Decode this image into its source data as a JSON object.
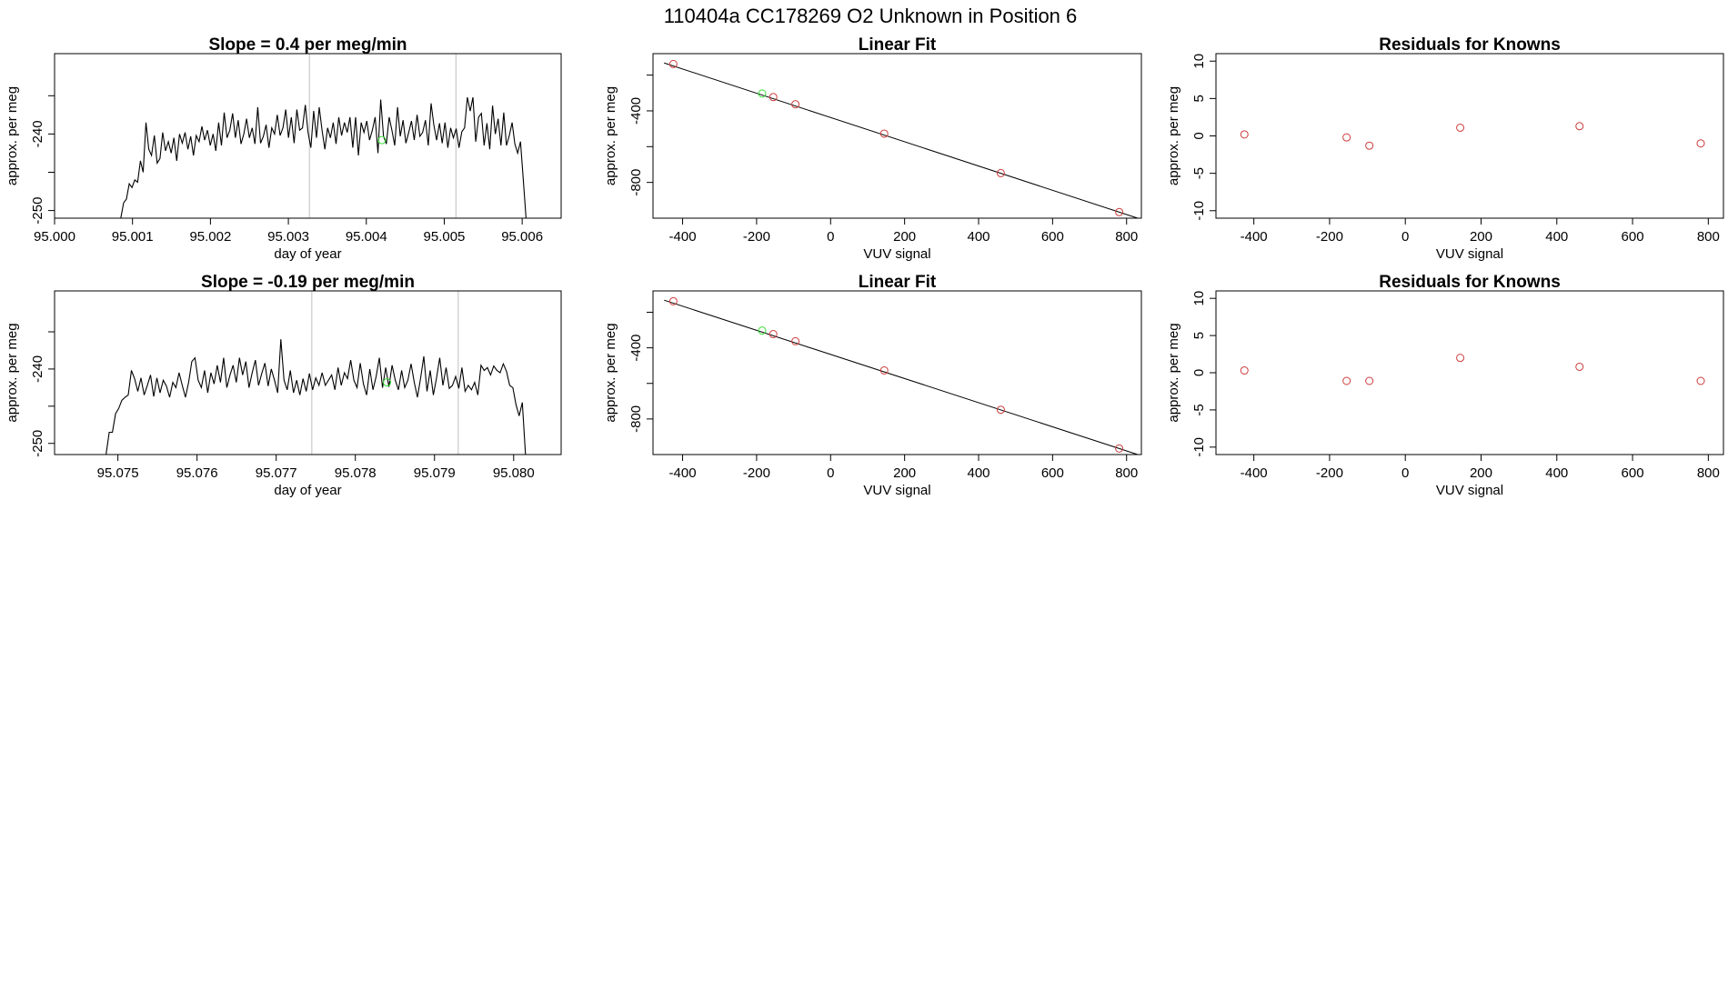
{
  "page_title": "110404a      CC178269   O2 Unknown in Position  6",
  "chart_data": [
    {
      "type": "line",
      "title": "Slope =  0.4  per meg/min",
      "xlabel": "day of year",
      "ylabel": "approx. per meg",
      "xlim": [
        95.0,
        95.0065
      ],
      "ylim": [
        -251,
        -229.5
      ],
      "xticks": [
        "95.000",
        "95.001",
        "95.002",
        "95.003",
        "95.004",
        "95.005",
        "95.006"
      ],
      "xtick_values": [
        95.0,
        95.001,
        95.002,
        95.003,
        95.004,
        95.005,
        95.006
      ],
      "yticks": [
        "-250",
        "-240"
      ],
      "ytick_values": [
        -250,
        -245,
        -240,
        -235
      ],
      "vlines": [
        95.00327,
        95.00515
      ],
      "x_start": 95.00085,
      "x_end": 95.00605,
      "series_y": [
        -251,
        -249,
        -248.5,
        -246.5,
        -247,
        -246,
        -246.3,
        -243.5,
        -245,
        -238.5,
        -242,
        -242.8,
        -240.2,
        -243.8,
        -243.2,
        -239.8,
        -242.2,
        -241,
        -242.5,
        -240.5,
        -243.5,
        -240,
        -241.2,
        -239.8,
        -242,
        -240.3,
        -242.8,
        -240.2,
        -241,
        -239,
        -240.8,
        -239.5,
        -241.5,
        -240,
        -242.2,
        -238.5,
        -241.5,
        -237.2,
        -240.5,
        -239.5,
        -237.3,
        -240.5,
        -238.2,
        -241.3,
        -240,
        -238,
        -240.5,
        -239.2,
        -241.3,
        -236.5,
        -241.2,
        -240.3,
        -238.8,
        -241.8,
        -239.2,
        -240,
        -237.5,
        -240.2,
        -239.2,
        -236.8,
        -240.5,
        -237.8,
        -241.2,
        -236.8,
        -239.5,
        -239.2,
        -236.2,
        -239.8,
        -241.8,
        -237,
        -240.5,
        -236.5,
        -239.5,
        -242,
        -239.2,
        -240.5,
        -238.5,
        -241.3,
        -237.8,
        -240.2,
        -238.5,
        -239.8,
        -237.8,
        -241.8,
        -237.8,
        -242.8,
        -238.5,
        -239.8,
        -238.3,
        -240.8,
        -239.5,
        -237.8,
        -242.5,
        -235.5,
        -240.3,
        -241.3,
        -237.8,
        -239.5,
        -241.5,
        -236.5,
        -240.3,
        -238.2,
        -241.2,
        -239.8,
        -238.3,
        -240.8,
        -237.5,
        -240.3,
        -239.8,
        -238.2,
        -241.5,
        -236,
        -238.8,
        -240.8,
        -238.6,
        -241.2,
        -238.5,
        -241.8,
        -239.2,
        -240.5,
        -239.3,
        -241.8,
        -239.7,
        -239.2,
        -235.2,
        -237,
        -235.2,
        -241,
        -237.8,
        -237.3,
        -241.5,
        -238.6,
        -242,
        -236.3,
        -240,
        -238,
        -241.5,
        -237.2,
        -241.5,
        -240.2,
        -238.5,
        -241.3,
        -242.5,
        -241,
        -246,
        -251
      ],
      "highlight_points": [
        {
          "x": 95.0042,
          "y": -240.8
        }
      ]
    },
    {
      "type": "scatter",
      "title": "Linear Fit",
      "xlabel": "VUV signal",
      "ylabel": "approx. per meg",
      "xlim": [
        -480,
        840
      ],
      "ylim": [
        -1000,
        -80
      ],
      "xticks": [
        "-400",
        "-200",
        "0",
        "200",
        "400",
        "600",
        "800"
      ],
      "xtick_values": [
        -400,
        -200,
        0,
        200,
        400,
        600,
        800
      ],
      "yticks": [
        "-800",
        "-400"
      ],
      "ytick_values": [
        -800,
        -600,
        -400,
        -200
      ],
      "fit_line": {
        "x": [
          -450,
          830
        ],
        "y": [
          -132,
          -1000
        ]
      },
      "points": [
        {
          "x": -425,
          "y": -138
        },
        {
          "x": -155,
          "y": -323
        },
        {
          "x": -95,
          "y": -363
        },
        {
          "x": 145,
          "y": -527
        },
        {
          "x": 460,
          "y": -748
        },
        {
          "x": 780,
          "y": -966
        }
      ],
      "highlight_points": [
        {
          "x": -185,
          "y": -303
        }
      ]
    },
    {
      "type": "scatter",
      "title": "Residuals for Knowns",
      "xlabel": "VUV signal",
      "ylabel": "approx. per meg",
      "xlim": [
        -500,
        840
      ],
      "ylim": [
        -11,
        11
      ],
      "xticks": [
        "-400",
        "-200",
        "0",
        "200",
        "400",
        "600",
        "800"
      ],
      "xtick_values": [
        -400,
        -200,
        0,
        200,
        400,
        600,
        800
      ],
      "yticks": [
        "-10",
        "-5",
        "0",
        "5",
        "10"
      ],
      "ytick_values": [
        -10,
        -5,
        0,
        5,
        10
      ],
      "points": [
        {
          "x": -425,
          "y": 0.2
        },
        {
          "x": -155,
          "y": -0.2
        },
        {
          "x": -95,
          "y": -1.3
        },
        {
          "x": 145,
          "y": 1.1
        },
        {
          "x": 460,
          "y": 1.3
        },
        {
          "x": 780,
          "y": -1.0
        }
      ]
    },
    {
      "type": "line",
      "title": "Slope =  -0.19  per meg/min",
      "xlabel": "day of year",
      "ylabel": "approx. per meg",
      "xlim": [
        95.0742,
        95.0806
      ],
      "ylim": [
        -251.5,
        -229.5
      ],
      "xticks": [
        "95.075",
        "95.076",
        "95.077",
        "95.078",
        "95.079",
        "95.080"
      ],
      "xtick_values": [
        95.075,
        95.076,
        95.077,
        95.078,
        95.079,
        95.08
      ],
      "yticks": [
        "-250",
        "-240"
      ],
      "ytick_values": [
        -250,
        -245,
        -240,
        -235
      ],
      "vlines": [
        95.07745,
        95.0793
      ],
      "x_start": 95.07485,
      "x_end": 95.08015,
      "series_y": [
        -251.5,
        -248.5,
        -248.5,
        -246,
        -245.3,
        -244.2,
        -243.8,
        -243.5,
        -240.2,
        -241.3,
        -243,
        -241.2,
        -243.5,
        -242.2,
        -240.8,
        -243.7,
        -241.2,
        -243.2,
        -241.5,
        -242.3,
        -243.8,
        -241.8,
        -242.5,
        -240.5,
        -242.2,
        -243.8,
        -241.8,
        -239,
        -238.5,
        -241.5,
        -242.5,
        -240.2,
        -243.2,
        -240.5,
        -242,
        -239.5,
        -241.8,
        -238.5,
        -242.5,
        -240.8,
        -239.5,
        -241.8,
        -238.5,
        -240.8,
        -239,
        -242.5,
        -240.5,
        -238.8,
        -242.2,
        -240.6,
        -239.2,
        -242.3,
        -240,
        -241.5,
        -243.2,
        -236,
        -241.5,
        -242.8,
        -240.2,
        -243.2,
        -241.5,
        -243.5,
        -241.3,
        -243,
        -240.6,
        -242.8,
        -241.2,
        -242.2,
        -240.5,
        -242.2,
        -241.5,
        -240.8,
        -242.8,
        -239.8,
        -242.2,
        -240.5,
        -241.3,
        -238.8,
        -241.5,
        -242.5,
        -239.2,
        -242,
        -243.5,
        -240,
        -242.8,
        -241,
        -238.5,
        -242.5,
        -239.8,
        -242.4,
        -239.5,
        -241.5,
        -242.8,
        -240.2,
        -242.5,
        -241.5,
        -239.3,
        -241.8,
        -243.8,
        -241.2,
        -238.3,
        -243,
        -240.2,
        -243.5,
        -241.2,
        -238.5,
        -242.2,
        -239.8,
        -242.6,
        -242.2,
        -241,
        -242.6,
        -239.8,
        -243,
        -242.2,
        -242.8,
        -241.8,
        -243.5,
        -239.5,
        -240.2,
        -239.8,
        -240.8,
        -239.6,
        -240.2,
        -240.5,
        -239.3,
        -240.3,
        -242.2,
        -242.5,
        -244.8,
        -246.3,
        -244.5,
        -251.5
      ],
      "highlight_points": [
        {
          "x": 95.0784,
          "y": -241.8
        }
      ]
    },
    {
      "type": "scatter",
      "title": "Linear Fit",
      "xlabel": "VUV signal",
      "ylabel": "approx. per meg",
      "xlim": [
        -480,
        840
      ],
      "ylim": [
        -1000,
        -80
      ],
      "xticks": [
        "-400",
        "-200",
        "0",
        "200",
        "400",
        "600",
        "800"
      ],
      "xtick_values": [
        -400,
        -200,
        0,
        200,
        400,
        600,
        800
      ],
      "yticks": [
        "-800",
        "-400"
      ],
      "ytick_values": [
        -800,
        -600,
        -400,
        -200
      ],
      "fit_line": {
        "x": [
          -450,
          830
        ],
        "y": [
          -132,
          -1000
        ]
      },
      "points": [
        {
          "x": -425,
          "y": -138
        },
        {
          "x": -155,
          "y": -323
        },
        {
          "x": -95,
          "y": -363
        },
        {
          "x": 145,
          "y": -527
        },
        {
          "x": 460,
          "y": -748
        },
        {
          "x": 780,
          "y": -966
        }
      ],
      "highlight_points": [
        {
          "x": -185,
          "y": -303
        }
      ]
    },
    {
      "type": "scatter",
      "title": "Residuals for Knowns",
      "xlabel": "VUV signal",
      "ylabel": "approx. per meg",
      "xlim": [
        -500,
        840
      ],
      "ylim": [
        -11,
        11
      ],
      "xticks": [
        "-400",
        "-200",
        "0",
        "200",
        "400",
        "600",
        "800"
      ],
      "xtick_values": [
        -400,
        -200,
        0,
        200,
        400,
        600,
        800
      ],
      "yticks": [
        "-10",
        "-5",
        "0",
        "5",
        "10"
      ],
      "ytick_values": [
        -10,
        -5,
        0,
        5,
        10
      ],
      "points": [
        {
          "x": -425,
          "y": 0.3
        },
        {
          "x": -155,
          "y": -1.1
        },
        {
          "x": -95,
          "y": -1.1
        },
        {
          "x": 145,
          "y": 2.0
        },
        {
          "x": 460,
          "y": 0.8
        },
        {
          "x": 780,
          "y": -1.1
        }
      ]
    }
  ]
}
